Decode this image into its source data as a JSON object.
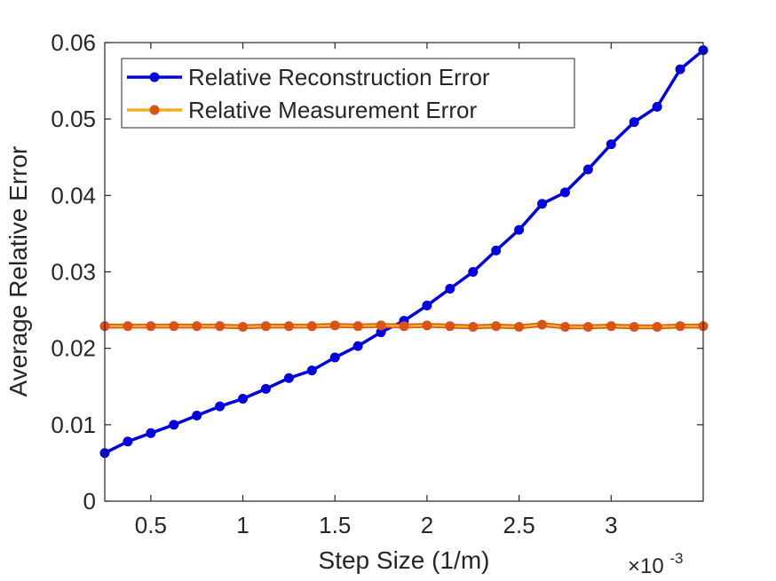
{
  "chart_data": {
    "type": "line",
    "title": "",
    "xlabel": "Step Size (1/m)",
    "ylabel": "Average Relative Error",
    "x_exponent_label": "×10",
    "x_exponent_power": "-3",
    "xlim": [
      0.25,
      3.5
    ],
    "ylim": [
      0,
      0.06
    ],
    "x_ticks": [
      0.5,
      1,
      1.5,
      2,
      2.5,
      3
    ],
    "x_tick_labels": [
      "0.5",
      "1",
      "1.5",
      "2",
      "2.5",
      "3"
    ],
    "y_ticks": [
      0,
      0.01,
      0.02,
      0.03,
      0.04,
      0.05,
      0.06
    ],
    "y_tick_labels": [
      "0",
      "0.01",
      "0.02",
      "0.03",
      "0.04",
      "0.05",
      "0.06"
    ],
    "grid": false,
    "legend_position": "top-left",
    "x": [
      0.25,
      0.375,
      0.5,
      0.625,
      0.75,
      0.875,
      1.0,
      1.125,
      1.25,
      1.375,
      1.5,
      1.625,
      1.75,
      1.875,
      2.0,
      2.125,
      2.25,
      2.375,
      2.5,
      2.625,
      2.75,
      2.875,
      3.0,
      3.125,
      3.25,
      3.375,
      3.5
    ],
    "series": [
      {
        "name": "Relative Reconstruction Error",
        "color": "#0000e0",
        "values": [
          0.0063,
          0.0078,
          0.0089,
          0.01,
          0.0112,
          0.0124,
          0.0134,
          0.0147,
          0.0161,
          0.0171,
          0.0188,
          0.0203,
          0.0221,
          0.0236,
          0.0256,
          0.0278,
          0.03,
          0.0328,
          0.0355,
          0.0389,
          0.0404,
          0.0434,
          0.0467,
          0.0496,
          0.0516,
          0.0565,
          0.059
        ]
      },
      {
        "name": "Relative Measurement Error",
        "color": "#d95319",
        "line_color": "#edb120",
        "values": [
          0.0229,
          0.0229,
          0.0229,
          0.0229,
          0.0229,
          0.0229,
          0.0228,
          0.0229,
          0.0229,
          0.0229,
          0.023,
          0.0229,
          0.023,
          0.0229,
          0.023,
          0.0229,
          0.0228,
          0.0229,
          0.0228,
          0.0231,
          0.0228,
          0.0228,
          0.0229,
          0.0228,
          0.0228,
          0.0229,
          0.0229
        ]
      }
    ]
  }
}
